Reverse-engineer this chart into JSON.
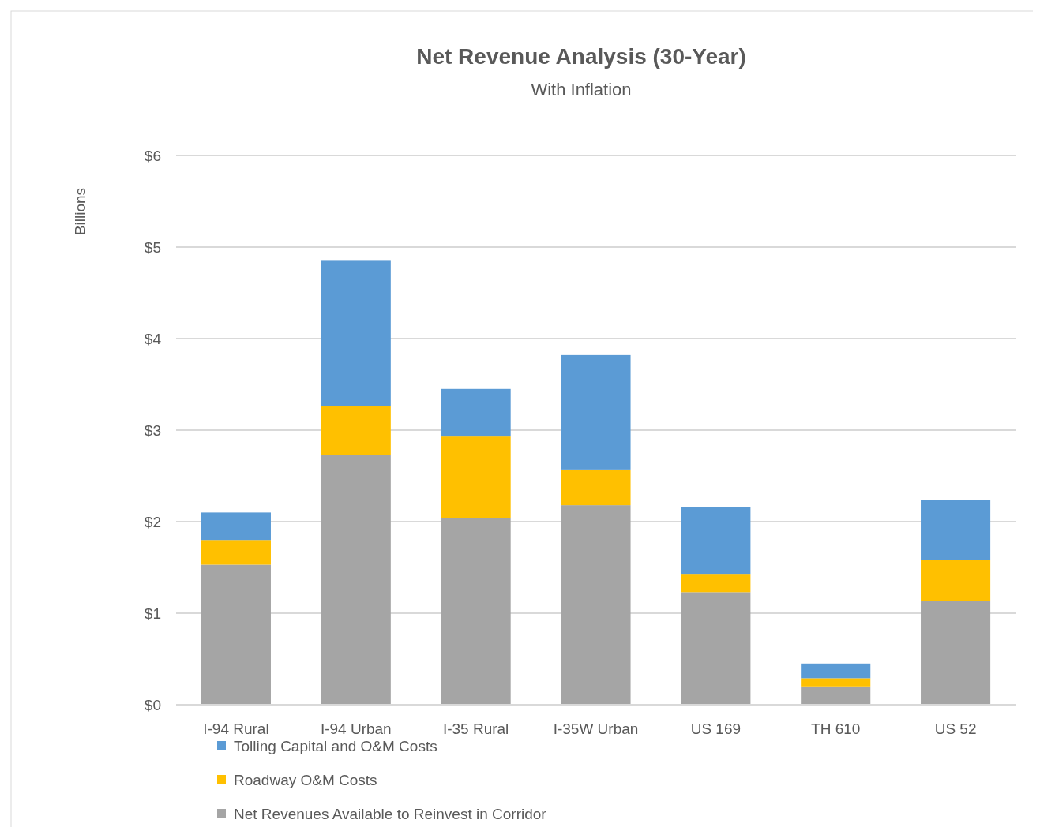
{
  "chart_data": {
    "type": "bar",
    "title": "Net Revenue Analysis (30-Year)",
    "subtitle": "With Inflation",
    "ylabel": "Billions",
    "stacked": true,
    "categories": [
      "I-94 Rural",
      "I-94 Urban",
      "I-35 Rural",
      "I-35W Urban",
      "US 169",
      "TH 610",
      "US 52"
    ],
    "series": [
      {
        "name": "Net Revenues Available to Reinvest in Corridor",
        "color": "#a5a5a5",
        "values": [
          1.53,
          2.73,
          2.04,
          2.18,
          1.23,
          0.2,
          1.13
        ]
      },
      {
        "name": "Roadway O&M Costs",
        "color": "#ffc000",
        "values": [
          0.27,
          0.53,
          0.89,
          0.39,
          0.2,
          0.09,
          0.45
        ]
      },
      {
        "name": "Tolling Capital and O&M Costs",
        "color": "#5b9bd5",
        "values": [
          0.3,
          1.59,
          0.52,
          1.25,
          0.73,
          0.16,
          0.66
        ]
      }
    ],
    "ylim": [
      0,
      6
    ],
    "yticks": [
      {
        "value": 0,
        "label": "$0"
      },
      {
        "value": 1,
        "label": "$1"
      },
      {
        "value": 2,
        "label": "$2"
      },
      {
        "value": 3,
        "label": "$3"
      },
      {
        "value": 4,
        "label": "$4"
      },
      {
        "value": 5,
        "label": "$5"
      },
      {
        "value": 6,
        "label": "$6"
      }
    ],
    "grid": "y",
    "legend": "bottom"
  }
}
